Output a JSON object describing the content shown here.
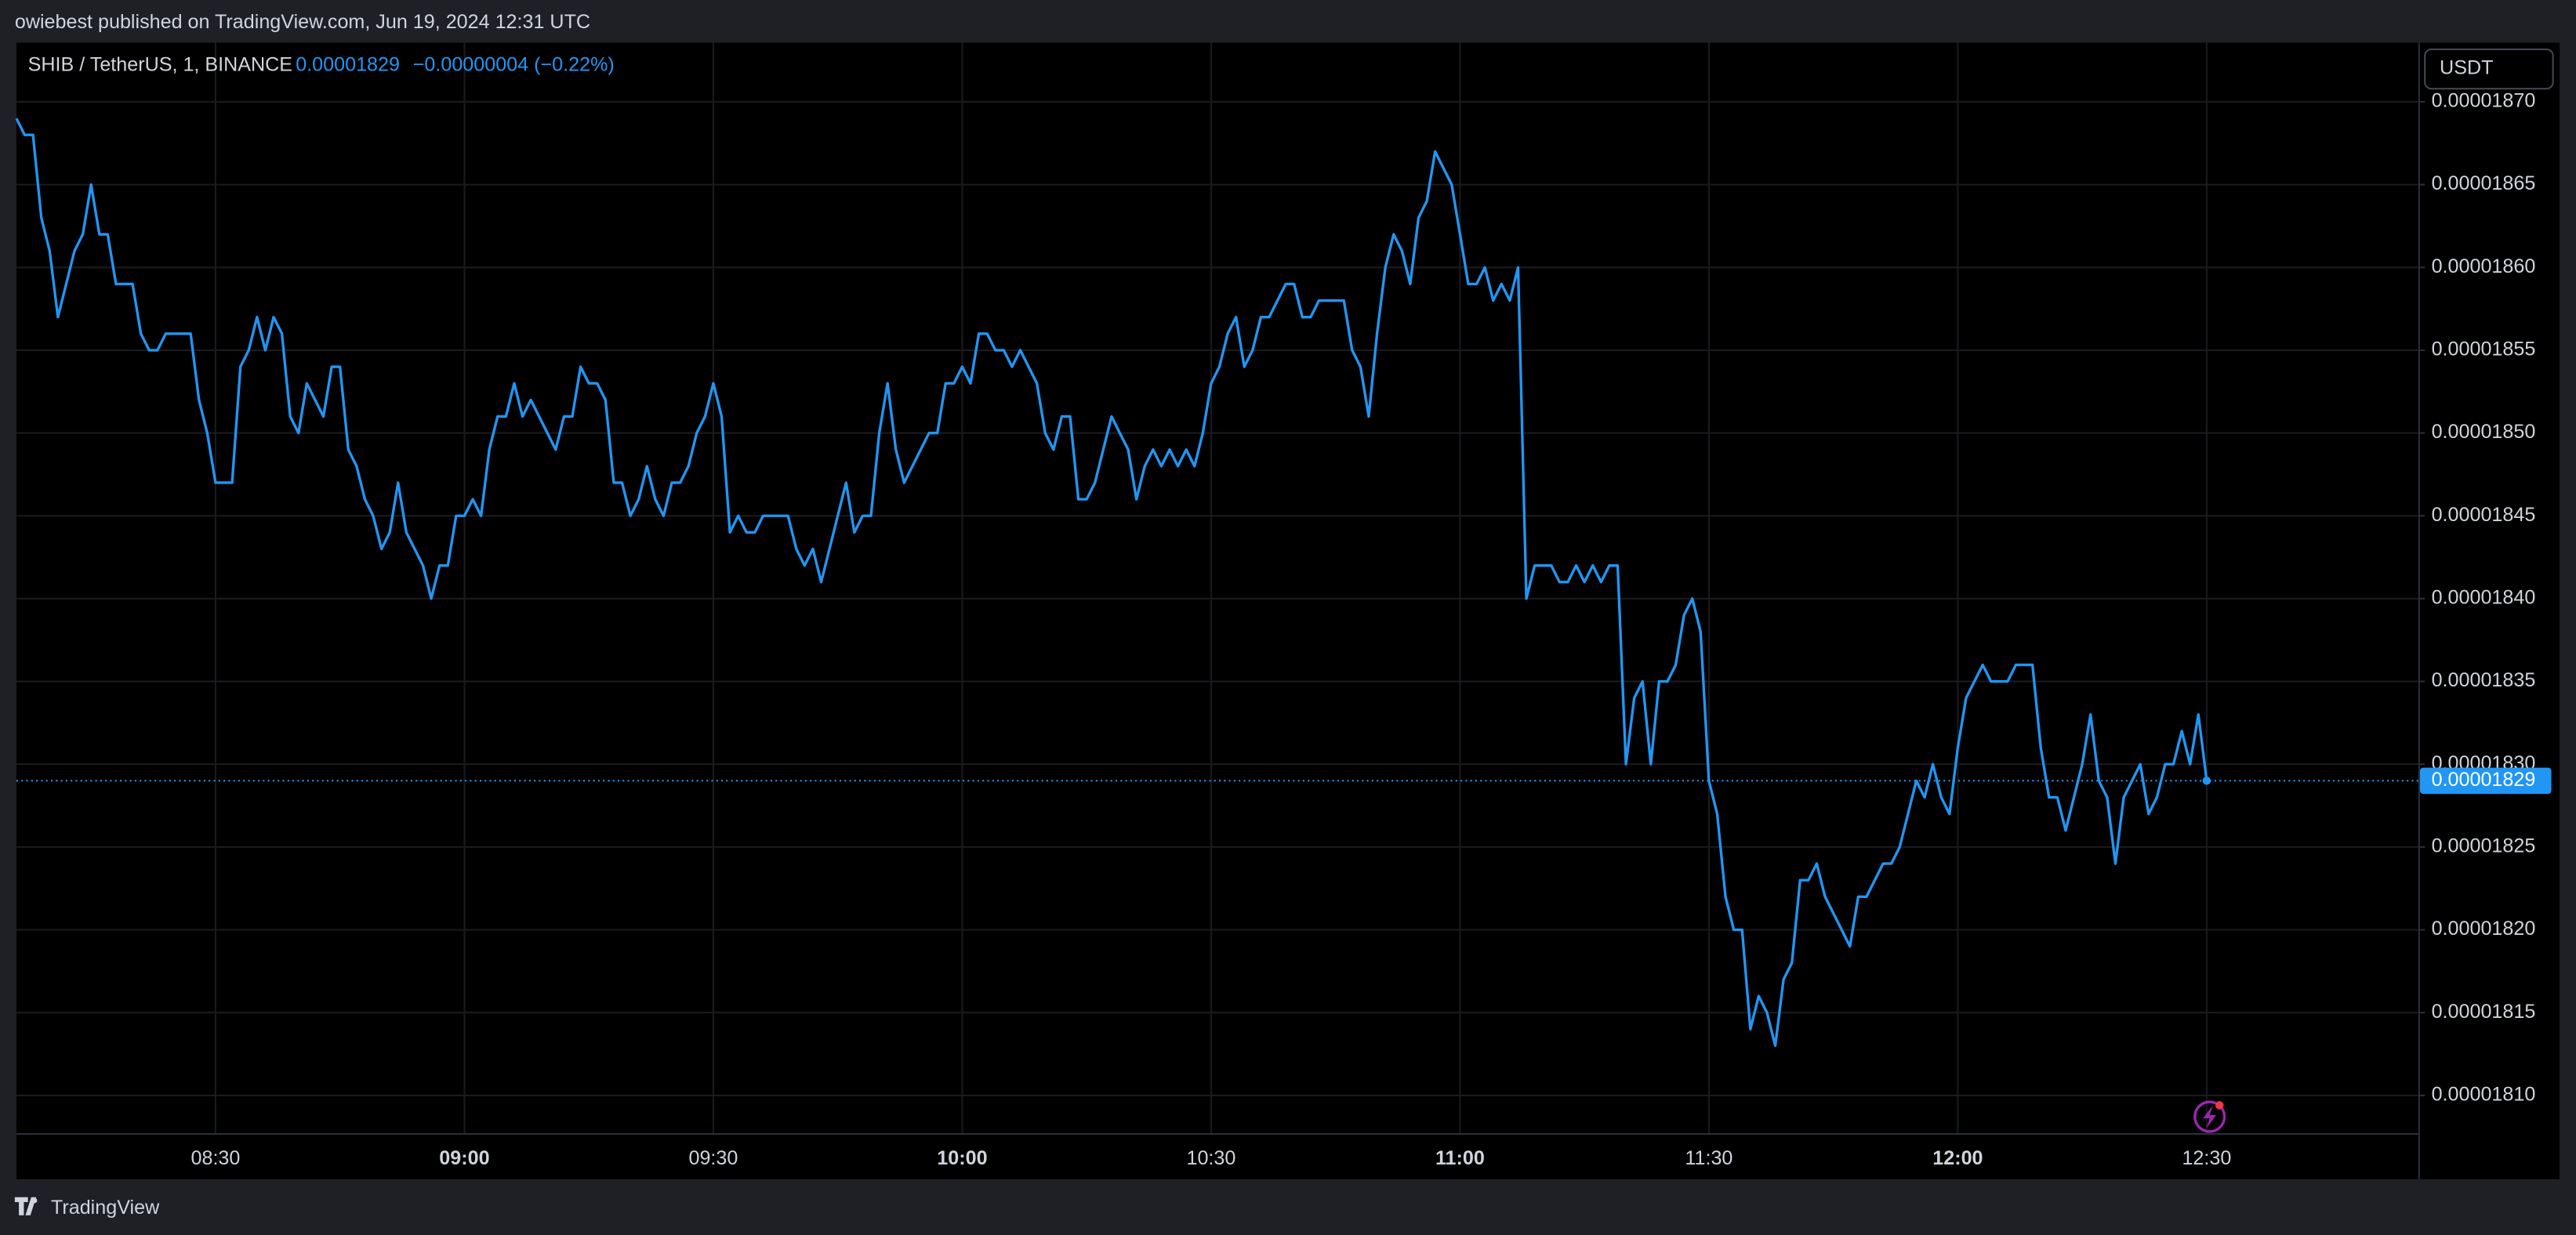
{
  "header": "owiebest published on TradingView.com, Jun 19, 2024 12:31 UTC",
  "footer": "TradingView",
  "chart_data": {
    "type": "line",
    "title": "SHIB / TetherUS, 1, BINANCE",
    "change": "−0.00000004 (−0.22%)",
    "currency": "USDT",
    "grid": true,
    "color": "#2196f3",
    "categories": [
      null,
      null,
      null,
      null,
      null,
      null,
      null,
      null,
      null,
      null,
      null,
      null,
      null,
      null,
      null,
      null,
      null,
      null,
      null,
      null,
      null,
      null,
      null,
      null,
      "08:30",
      null,
      null,
      null,
      null,
      null,
      null,
      null,
      null,
      null,
      null,
      null,
      null,
      null,
      null,
      null,
      null,
      null,
      null,
      null,
      null,
      null,
      null,
      null,
      null,
      null,
      null,
      null,
      null,
      null,
      "09:00",
      null,
      null,
      null,
      null,
      null,
      null,
      null,
      null,
      null,
      null,
      null,
      null,
      null,
      null,
      null,
      null,
      null,
      null,
      null,
      null,
      null,
      null,
      null,
      null,
      null,
      null,
      null,
      null,
      null,
      "09:30",
      null,
      null,
      null,
      null,
      null,
      null,
      null,
      null,
      null,
      null,
      null,
      null,
      null,
      null,
      null,
      null,
      null,
      null,
      null,
      null,
      null,
      null,
      null,
      null,
      null,
      null,
      null,
      null,
      null,
      "10:00",
      null,
      null,
      null,
      null,
      null,
      null,
      null,
      null,
      null,
      null,
      null,
      null,
      null,
      null,
      null,
      null,
      null,
      null,
      null,
      null,
      null,
      null,
      null,
      null,
      null,
      null,
      null,
      null,
      null,
      "10:30",
      null,
      null,
      null,
      null,
      null,
      null,
      null,
      null,
      null,
      null,
      null,
      null,
      null,
      null,
      null,
      null,
      null,
      null,
      null,
      null,
      null,
      null,
      null,
      null,
      null,
      null,
      null,
      null,
      null,
      "11:00",
      null,
      null,
      null,
      null,
      null,
      null,
      null,
      null,
      null,
      null,
      null,
      null,
      null,
      null,
      null,
      null,
      null,
      null,
      null,
      null,
      null,
      null,
      null,
      null,
      null,
      null,
      null,
      null,
      null,
      "11:30",
      null,
      null,
      null,
      null,
      null,
      null,
      null,
      null,
      null,
      null,
      null,
      null,
      null,
      null,
      null,
      null,
      null,
      null,
      null,
      null,
      null,
      null,
      null,
      null,
      null,
      null,
      null,
      null,
      null,
      "12:00",
      null,
      null,
      null,
      null,
      null,
      null,
      null,
      null,
      null,
      null,
      null,
      null,
      null,
      null,
      null,
      null,
      null,
      null,
      null,
      null,
      null,
      null,
      null,
      null,
      null,
      null,
      null,
      null,
      null,
      "12:30"
    ],
    "values": [
      1.869e-05,
      1.868e-05,
      1.868e-05,
      1.863e-05,
      1.861e-05,
      1.857e-05,
      1.859e-05,
      1.861e-05,
      1.862e-05,
      1.865e-05,
      1.862e-05,
      1.862e-05,
      1.859e-05,
      1.859e-05,
      1.859e-05,
      1.856e-05,
      1.855e-05,
      1.855e-05,
      1.856e-05,
      1.856e-05,
      1.856e-05,
      1.856e-05,
      1.852e-05,
      1.85e-05,
      1.847e-05,
      1.847e-05,
      1.847e-05,
      1.854e-05,
      1.855e-05,
      1.857e-05,
      1.855e-05,
      1.857e-05,
      1.856e-05,
      1.851e-05,
      1.85e-05,
      1.853e-05,
      1.852e-05,
      1.851e-05,
      1.854e-05,
      1.854e-05,
      1.849e-05,
      1.848e-05,
      1.846e-05,
      1.845e-05,
      1.843e-05,
      1.844e-05,
      1.847e-05,
      1.844e-05,
      1.843e-05,
      1.842e-05,
      1.84e-05,
      1.842e-05,
      1.842e-05,
      1.845e-05,
      1.845e-05,
      1.846e-05,
      1.845e-05,
      1.849e-05,
      1.851e-05,
      1.851e-05,
      1.853e-05,
      1.851e-05,
      1.852e-05,
      1.851e-05,
      1.85e-05,
      1.849e-05,
      1.851e-05,
      1.851e-05,
      1.854e-05,
      1.853e-05,
      1.853e-05,
      1.852e-05,
      1.847e-05,
      1.847e-05,
      1.845e-05,
      1.846e-05,
      1.848e-05,
      1.846e-05,
      1.845e-05,
      1.847e-05,
      1.847e-05,
      1.848e-05,
      1.85e-05,
      1.851e-05,
      1.853e-05,
      1.851e-05,
      1.844e-05,
      1.845e-05,
      1.844e-05,
      1.844e-05,
      1.845e-05,
      1.845e-05,
      1.845e-05,
      1.845e-05,
      1.843e-05,
      1.842e-05,
      1.843e-05,
      1.841e-05,
      1.843e-05,
      1.845e-05,
      1.847e-05,
      1.844e-05,
      1.845e-05,
      1.845e-05,
      1.85e-05,
      1.853e-05,
      1.849e-05,
      1.847e-05,
      1.848e-05,
      1.849e-05,
      1.85e-05,
      1.85e-05,
      1.853e-05,
      1.853e-05,
      1.854e-05,
      1.853e-05,
      1.856e-05,
      1.856e-05,
      1.855e-05,
      1.855e-05,
      1.854e-05,
      1.855e-05,
      1.854e-05,
      1.853e-05,
      1.85e-05,
      1.849e-05,
      1.851e-05,
      1.851e-05,
      1.846e-05,
      1.846e-05,
      1.847e-05,
      1.849e-05,
      1.851e-05,
      1.85e-05,
      1.849e-05,
      1.846e-05,
      1.848e-05,
      1.849e-05,
      1.848e-05,
      1.849e-05,
      1.848e-05,
      1.849e-05,
      1.848e-05,
      1.85e-05,
      1.853e-05,
      1.854e-05,
      1.856e-05,
      1.857e-05,
      1.854e-05,
      1.855e-05,
      1.857e-05,
      1.857e-05,
      1.858e-05,
      1.859e-05,
      1.859e-05,
      1.857e-05,
      1.857e-05,
      1.858e-05,
      1.858e-05,
      1.858e-05,
      1.858e-05,
      1.855e-05,
      1.854e-05,
      1.851e-05,
      1.856e-05,
      1.86e-05,
      1.862e-05,
      1.861e-05,
      1.859e-05,
      1.863e-05,
      1.864e-05,
      1.867e-05,
      1.866e-05,
      1.865e-05,
      1.862e-05,
      1.859e-05,
      1.859e-05,
      1.86e-05,
      1.858e-05,
      1.859e-05,
      1.858e-05,
      1.86e-05,
      1.84e-05,
      1.842e-05,
      1.842e-05,
      1.842e-05,
      1.841e-05,
      1.841e-05,
      1.842e-05,
      1.841e-05,
      1.842e-05,
      1.841e-05,
      1.842e-05,
      1.842e-05,
      1.83e-05,
      1.834e-05,
      1.835e-05,
      1.83e-05,
      1.835e-05,
      1.835e-05,
      1.836e-05,
      1.839e-05,
      1.84e-05,
      1.838e-05,
      1.829e-05,
      1.827e-05,
      1.822e-05,
      1.82e-05,
      1.82e-05,
      1.814e-05,
      1.816e-05,
      1.815e-05,
      1.813e-05,
      1.817e-05,
      1.818e-05,
      1.823e-05,
      1.823e-05,
      1.824e-05,
      1.822e-05,
      1.821e-05,
      1.82e-05,
      1.819e-05,
      1.822e-05,
      1.822e-05,
      1.823e-05,
      1.824e-05,
      1.824e-05,
      1.825e-05,
      1.827e-05,
      1.829e-05,
      1.828e-05,
      1.83e-05,
      1.828e-05,
      1.827e-05,
      1.831e-05,
      1.834e-05,
      1.835e-05,
      1.836e-05,
      1.835e-05,
      1.835e-05,
      1.835e-05,
      1.836e-05,
      1.836e-05,
      1.836e-05,
      1.831e-05,
      1.828e-05,
      1.828e-05,
      1.826e-05,
      1.828e-05,
      1.83e-05,
      1.833e-05,
      1.829e-05,
      1.828e-05,
      1.824e-05,
      1.828e-05,
      1.829e-05,
      1.83e-05,
      1.827e-05,
      1.828e-05,
      1.83e-05,
      1.83e-05,
      1.832e-05,
      1.83e-05,
      1.833e-05,
      1.829e-05
    ],
    "ylim": [
      1.80772e-05,
      1.87357e-05
    ],
    "yticks": [
      {
        "value": 1.81e-05,
        "label": "0.00001810"
      },
      1.815e-05,
      {
        "value": 1.82e-05,
        "label": "0.00001820"
      },
      1.825e-05,
      {
        "value": 1.83e-05,
        "label": "0.00001830"
      },
      1.835e-05,
      {
        "value": 1.84e-05,
        "label": "0.00001840"
      },
      1.845e-05,
      {
        "value": 1.85e-05,
        "label": "0.00001850"
      },
      1.855e-05,
      {
        "value": 1.86e-05,
        "label": "0.00001860"
      },
      1.865e-05,
      {
        "value": 1.87e-05,
        "label": "0.00001870"
      }
    ]
  }
}
